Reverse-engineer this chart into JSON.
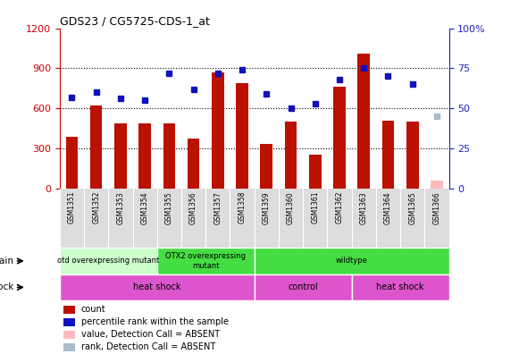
{
  "title": "GDS23 / CG5725-CDS-1_at",
  "samples": [
    "GSM1351",
    "GSM1352",
    "GSM1353",
    "GSM1354",
    "GSM1355",
    "GSM1356",
    "GSM1357",
    "GSM1358",
    "GSM1359",
    "GSM1360",
    "GSM1361",
    "GSM1362",
    "GSM1363",
    "GSM1364",
    "GSM1365",
    "GSM1366"
  ],
  "counts": [
    390,
    620,
    490,
    490,
    490,
    370,
    870,
    790,
    330,
    500,
    250,
    760,
    1010,
    510,
    500,
    60
  ],
  "percentile_ranks": [
    57,
    60,
    56,
    55,
    72,
    62,
    72,
    74,
    59,
    50,
    53,
    68,
    75,
    70,
    65,
    45
  ],
  "absent_idx": 15,
  "ylim_left": [
    0,
    1200
  ],
  "ylim_right": [
    0,
    100
  ],
  "yticks_left": [
    0,
    300,
    600,
    900,
    1200
  ],
  "yticks_right": [
    0,
    25,
    50,
    75,
    100
  ],
  "bar_color": "#bb1100",
  "dot_color": "#1111bb",
  "absent_bar_color": "#ffbbbb",
  "absent_dot_color": "#aabbcc",
  "strain_groups": [
    {
      "label": "otd overexpressing mutant",
      "start": 0,
      "end": 4,
      "color": "#ccffcc"
    },
    {
      "label": "OTX2 overexpressing\nmutant",
      "start": 4,
      "end": 8,
      "color": "#44dd44"
    },
    {
      "label": "wildtype",
      "start": 8,
      "end": 16,
      "color": "#44dd44"
    }
  ],
  "shock_groups": [
    {
      "label": "heat shock",
      "start": 0,
      "end": 8
    },
    {
      "label": "control",
      "start": 8,
      "end": 12
    },
    {
      "label": "heat shock",
      "start": 12,
      "end": 16
    }
  ],
  "shock_color": "#dd55cc",
  "legend_labels": [
    "count",
    "percentile rank within the sample",
    "value, Detection Call = ABSENT",
    "rank, Detection Call = ABSENT"
  ],
  "legend_colors": [
    "#bb1100",
    "#1111bb",
    "#ffbbbb",
    "#aabbcc"
  ],
  "left_axis_color": "#cc0000",
  "right_axis_color": "#2222bb",
  "grid_yticks": [
    300,
    600,
    900
  ],
  "ticklabel_bg": "#dddddd"
}
